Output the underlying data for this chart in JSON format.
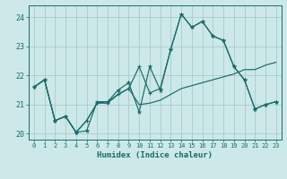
{
  "title": "",
  "xlabel": "Humidex (Indice chaleur)",
  "bg_color": "#cce8e8",
  "grid_color": "#aacccc",
  "line_color": "#1a6b6b",
  "xlim": [
    -0.5,
    23.5
  ],
  "ylim": [
    19.8,
    24.4
  ],
  "yticks": [
    20,
    21,
    22,
    23,
    24
  ],
  "xticks": [
    0,
    1,
    2,
    3,
    4,
    5,
    6,
    7,
    8,
    9,
    10,
    11,
    12,
    13,
    14,
    15,
    16,
    17,
    18,
    19,
    20,
    21,
    22,
    23
  ],
  "series1_x": [
    0,
    1,
    2,
    3,
    4,
    5,
    6,
    7,
    8,
    9,
    10,
    11,
    12,
    13,
    14,
    15,
    16,
    17,
    18,
    19,
    20,
    21,
    22,
    23
  ],
  "series1_y": [
    21.6,
    21.85,
    20.45,
    20.6,
    20.05,
    20.1,
    21.1,
    21.1,
    21.5,
    21.75,
    20.75,
    22.3,
    21.5,
    22.9,
    24.1,
    23.65,
    23.85,
    23.35,
    23.2,
    22.3,
    21.85,
    20.85,
    21.0,
    21.1
  ],
  "series2_x": [
    0,
    1,
    2,
    3,
    4,
    5,
    6,
    7,
    8,
    9,
    10,
    11,
    12,
    13,
    14,
    15,
    16,
    17,
    18,
    19,
    20,
    21,
    22,
    23
  ],
  "series2_y": [
    21.6,
    21.85,
    20.45,
    20.6,
    20.05,
    20.45,
    21.05,
    21.05,
    21.35,
    21.55,
    22.3,
    21.4,
    21.55,
    22.9,
    24.1,
    23.65,
    23.85,
    23.35,
    23.2,
    22.3,
    21.85,
    20.85,
    21.0,
    21.1
  ],
  "series3_x": [
    0,
    1,
    2,
    3,
    4,
    5,
    6,
    7,
    8,
    9,
    10,
    11,
    12,
    13,
    14,
    15,
    16,
    17,
    18,
    19,
    20,
    21,
    22,
    23
  ],
  "series3_y": [
    21.6,
    21.85,
    20.45,
    20.6,
    20.05,
    20.45,
    21.05,
    21.1,
    21.35,
    21.55,
    21.0,
    21.05,
    21.15,
    21.35,
    21.55,
    21.65,
    21.75,
    21.85,
    21.95,
    22.05,
    22.2,
    22.2,
    22.35,
    22.45
  ]
}
